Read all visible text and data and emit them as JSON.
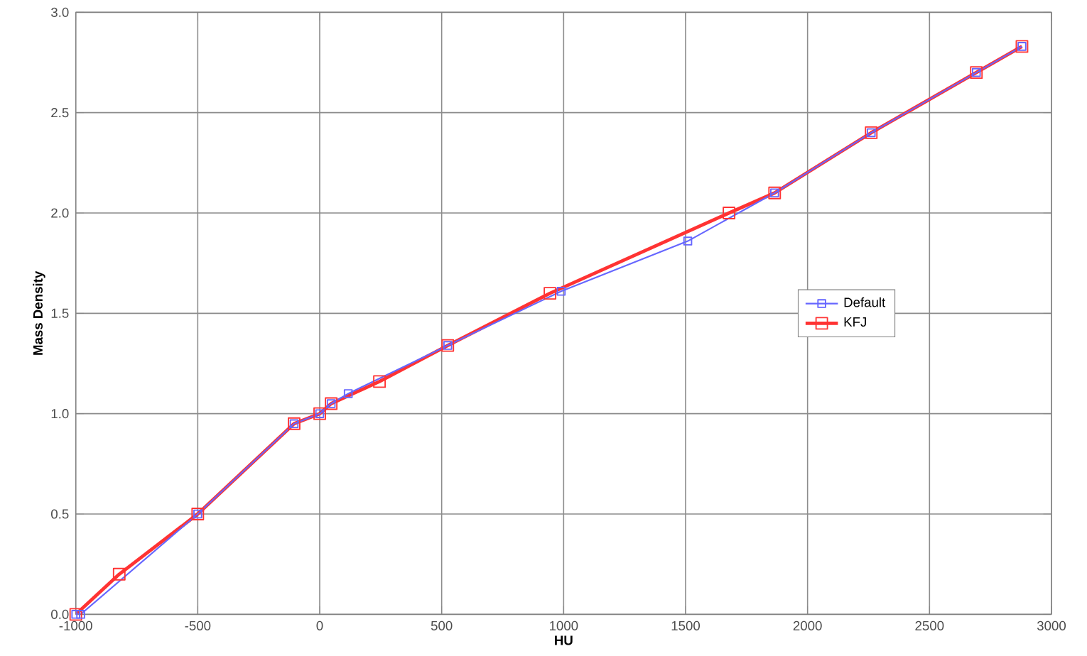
{
  "chart_data": {
    "type": "line",
    "xlabel": "HU",
    "ylabel": "Mass Density",
    "xlim": [
      -1000,
      3000
    ],
    "xticks": [
      -1000,
      -500,
      0,
      500,
      1000,
      1500,
      2000,
      2500,
      3000
    ],
    "ylim": [
      0,
      3
    ],
    "yticks": [
      {
        "value": 0,
        "label": "0.0"
      },
      {
        "value": 0.5,
        "label": "0.5"
      },
      {
        "value": 1,
        "label": "1.0"
      },
      {
        "value": 1.5,
        "label": "1.5"
      },
      {
        "value": 2,
        "label": "2.0"
      },
      {
        "value": 2.5,
        "label": "2.5"
      },
      {
        "value": 3,
        "label": "3.0"
      }
    ],
    "grid": true,
    "legend": "right",
    "marker": "square",
    "series": [
      {
        "name": "Default",
        "color": "#6666ff",
        "x": [
          -1000,
          -980,
          -500,
          -105,
          0,
          47,
          117,
          525,
          990,
          1509,
          1865,
          2261,
          2692,
          2879
        ],
        "values": [
          0,
          0,
          0.5,
          0.95,
          1.0,
          1.05,
          1.1,
          1.34,
          1.61,
          1.86,
          2.1,
          2.4,
          2.7,
          2.83
        ]
      },
      {
        "name": "KFJ",
        "color": "#ff3333",
        "x": [
          -1000,
          -822,
          -500,
          -105,
          0,
          47,
          245,
          525,
          944,
          1678,
          1865,
          2261,
          2692,
          2879
        ],
        "values": [
          0,
          0.2,
          0.5,
          0.95,
          1.0,
          1.05,
          1.16,
          1.34,
          1.6,
          2.0,
          2.1,
          2.4,
          2.7,
          2.83
        ]
      }
    ]
  }
}
